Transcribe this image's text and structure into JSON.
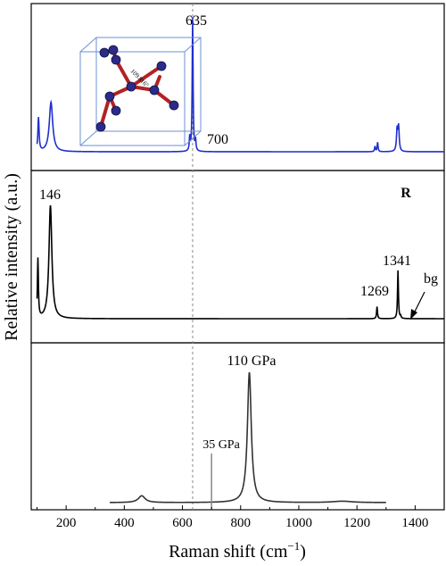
{
  "chart_data": {
    "type": "line",
    "xlabel": "Raman shift (cm⁻¹)",
    "ylabel": "Relative intensity (a.u.)",
    "xlim": [
      80,
      1500
    ],
    "xticks": [
      "200",
      "400",
      "600",
      "800",
      "1000",
      "1200",
      "1400"
    ],
    "reference_line_x": 635,
    "panels": [
      {
        "name": "top",
        "color": "#1f2fcc",
        "annotations": [
          {
            "text": "635",
            "x": 635
          },
          {
            "text": "700",
            "x": 700
          }
        ],
        "peaks": [
          {
            "x": 105,
            "height": 0.25
          },
          {
            "x": 148,
            "height": 0.37
          },
          {
            "x": 625,
            "height": 0.1
          },
          {
            "x": 635,
            "height": 1.0
          },
          {
            "x": 645,
            "height": 0.08
          },
          {
            "x": 1262,
            "height": 0.04
          },
          {
            "x": 1271,
            "height": 0.07
          },
          {
            "x": 1338,
            "height": 0.16
          },
          {
            "x": 1343,
            "height": 0.18
          }
        ],
        "inset_label": "109.816°"
      },
      {
        "name": "middle",
        "color": "#000000",
        "label": "R",
        "annotations": [
          {
            "text": "146",
            "x": 146
          },
          {
            "text": "1269",
            "x": 1269
          },
          {
            "text": "1341",
            "x": 1341
          },
          {
            "text": "bg",
            "x": 1400
          }
        ],
        "peaks": [
          {
            "x": 103,
            "height": 0.49
          },
          {
            "x": 146,
            "height": 0.94
          },
          {
            "x": 1269,
            "height": 0.1
          },
          {
            "x": 1341,
            "height": 0.4
          },
          {
            "x": 1350,
            "height": 0.02
          }
        ]
      },
      {
        "name": "bottom",
        "color": "#333333",
        "x_range": [
          350,
          1300
        ],
        "annotations": [
          {
            "text": "110 GPa",
            "x": 830
          },
          {
            "text": "35 GPa",
            "x": 700
          }
        ],
        "peaks": [
          {
            "x": 460,
            "height": 0.05
          },
          {
            "x": 830,
            "height": 0.96
          },
          {
            "x": 1150,
            "height": 0.01
          }
        ]
      }
    ]
  }
}
